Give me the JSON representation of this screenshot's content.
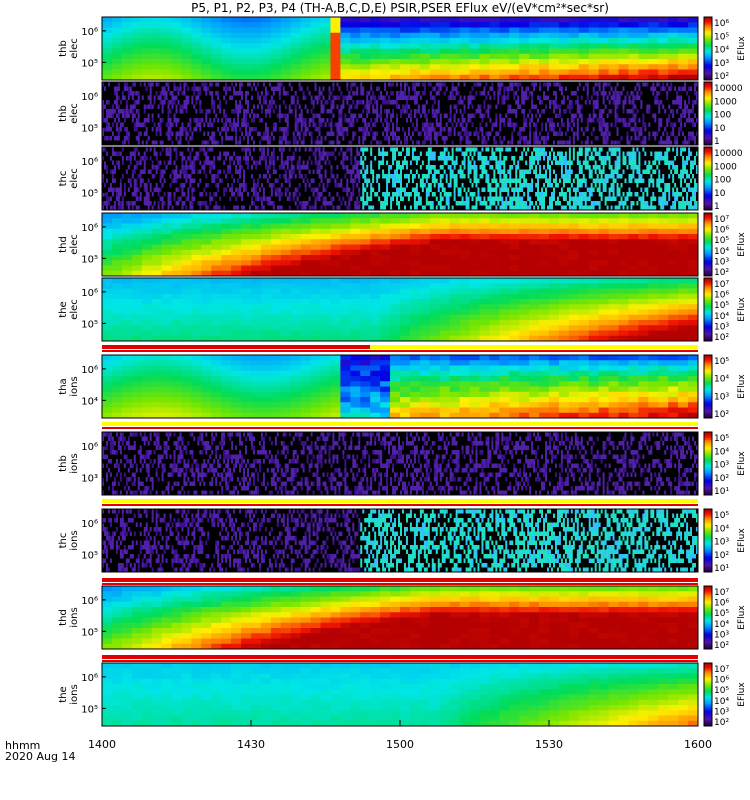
{
  "figure": {
    "title": "P5, P1, P2, P3, P4 (TH-A,B,C,D,E) PSIR,PSER EFlux eV/(eV*cm²*sec*sr)",
    "time_label": "hhmm",
    "date_label": "2020 Aug 14"
  },
  "chart_data": {
    "type": "heatmap",
    "x_axis": {
      "unit": "hhmm",
      "range": [
        "1400",
        "1600"
      ],
      "ticks": [
        "1400",
        "1430",
        "1500",
        "1530",
        "1600"
      ]
    },
    "panels": [
      {
        "ylabel": [
          "thb",
          "elec"
        ],
        "yticks": [
          "10⁶",
          "10⁵"
        ],
        "colorbar_label": "EFlux",
        "colorbar_ticks": [
          "10⁶",
          "10⁵",
          "10⁴",
          "10³",
          "10²"
        ],
        "pattern": "elec_quiet_then_plasma"
      },
      {
        "ylabel": [
          "thb",
          "elec"
        ],
        "yticks": [
          "10⁶",
          "10⁵"
        ],
        "colorbar_label": "",
        "colorbar_ticks": [
          "10000",
          "1000",
          "100",
          "10",
          "1"
        ],
        "pattern": "noise"
      },
      {
        "ylabel": [
          "thc",
          "elec"
        ],
        "yticks": [
          "10⁶",
          "10⁵"
        ],
        "colorbar_label": "",
        "colorbar_ticks": [
          "10000",
          "1000",
          "100",
          "10",
          "1"
        ],
        "pattern": "noise_then_cyan"
      },
      {
        "ylabel": [
          "thd",
          "elec"
        ],
        "yticks": [
          "10⁶",
          "10⁵"
        ],
        "colorbar_label": "EFlux",
        "colorbar_ticks": [
          "10⁷",
          "10⁶",
          "10⁵",
          "10⁴",
          "10³",
          "10²"
        ],
        "pattern": "rising_to_red"
      },
      {
        "ylabel": [
          "the",
          "elec"
        ],
        "yticks": [
          "10⁶",
          "10⁵"
        ],
        "colorbar_label": "EFlux",
        "colorbar_ticks": [
          "10⁷",
          "10⁶",
          "10⁵",
          "10⁴",
          "10³",
          "10²"
        ],
        "pattern": "slow_rise"
      },
      {
        "ylabel": [
          "tha",
          "ions"
        ],
        "yticks": [
          "10⁶",
          "10⁴"
        ],
        "colorbar_label": "EFlux",
        "colorbar_ticks": [
          "10⁵",
          "10⁴",
          "10³",
          "10²"
        ],
        "pattern": "ions_quiet_then_plasma"
      },
      {
        "ylabel": [
          "thb",
          "ions"
        ],
        "yticks": [
          "10⁶",
          "10³"
        ],
        "colorbar_label": "EFlux",
        "colorbar_ticks": [
          "10⁵",
          "10⁴",
          "10³",
          "10²",
          "10¹"
        ],
        "pattern": "noise"
      },
      {
        "ylabel": [
          "thc",
          "ions"
        ],
        "yticks": [
          "10⁶",
          "10⁵"
        ],
        "colorbar_label": "EFlux",
        "colorbar_ticks": [
          "10⁵",
          "10⁴",
          "10³",
          "10²",
          "10¹"
        ],
        "pattern": "noise_then_cyan"
      },
      {
        "ylabel": [
          "thd",
          "ions"
        ],
        "yticks": [
          "10⁶",
          "10⁵"
        ],
        "colorbar_label": "EFlux",
        "colorbar_ticks": [
          "10⁷",
          "10⁶",
          "10⁵",
          "10⁴",
          "10³",
          "10²"
        ],
        "pattern": "rising_to_red"
      },
      {
        "ylabel": [
          "the",
          "ions"
        ],
        "yticks": [
          "10⁶",
          "10⁵"
        ],
        "colorbar_label": "EFlux",
        "colorbar_ticks": [
          "10⁷",
          "10⁶",
          "10⁵",
          "10⁴",
          "10³",
          "10²"
        ],
        "pattern": "slow_rise_mild"
      }
    ]
  }
}
